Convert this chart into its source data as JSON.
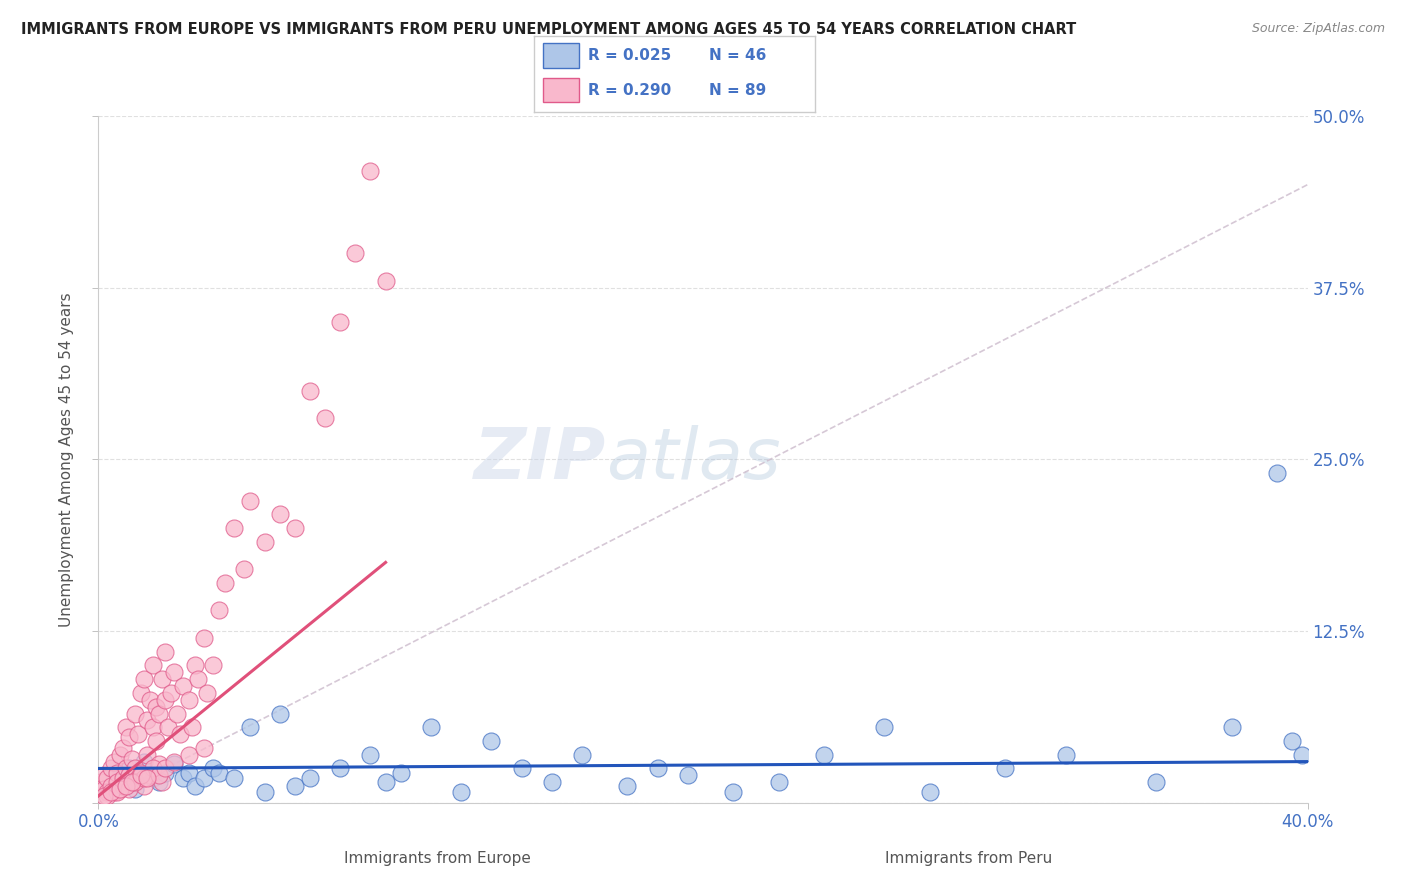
{
  "title": "IMMIGRANTS FROM EUROPE VS IMMIGRANTS FROM PERU UNEMPLOYMENT AMONG AGES 45 TO 54 YEARS CORRELATION CHART",
  "source": "Source: ZipAtlas.com",
  "ylabel": "Unemployment Among Ages 45 to 54 years",
  "xlabel_europe": "Immigrants from Europe",
  "xlabel_peru": "Immigrants from Peru",
  "xlim": [
    0.0,
    0.4
  ],
  "ylim": [
    0.0,
    0.5
  ],
  "yticks": [
    0.0,
    0.125,
    0.25,
    0.375,
    0.5
  ],
  "ytick_labels_right": [
    "",
    "12.5%",
    "25.0%",
    "37.5%",
    "50.0%"
  ],
  "xtick_positions": [
    0.0,
    0.4
  ],
  "xtick_labels": [
    "0.0%",
    "40.0%"
  ],
  "europe_fill_color": "#aec6e8",
  "europe_edge_color": "#4472c4",
  "peru_fill_color": "#f9b8cc",
  "peru_edge_color": "#e05a8a",
  "europe_line_color": "#2255bb",
  "peru_line_color": "#e0507a",
  "dashed_line_color": "#ccbbcc",
  "europe_R": 0.025,
  "europe_N": 46,
  "peru_R": 0.29,
  "peru_N": 89,
  "watermark_zip": "ZIP",
  "watermark_atlas": "atlas",
  "background_color": "#ffffff",
  "grid_color": "#dddddd",
  "title_color": "#222222",
  "legend_text_color": "#4472c4",
  "europe_scatter_x": [
    0.005,
    0.008,
    0.01,
    0.012,
    0.015,
    0.018,
    0.02,
    0.022,
    0.025,
    0.028,
    0.03,
    0.032,
    0.035,
    0.038,
    0.04,
    0.045,
    0.05,
    0.055,
    0.06,
    0.065,
    0.07,
    0.08,
    0.09,
    0.095,
    0.1,
    0.11,
    0.12,
    0.13,
    0.14,
    0.15,
    0.16,
    0.175,
    0.185,
    0.195,
    0.21,
    0.225,
    0.24,
    0.26,
    0.275,
    0.3,
    0.32,
    0.35,
    0.375,
    0.39,
    0.395,
    0.398
  ],
  "europe_scatter_y": [
    0.02,
    0.015,
    0.025,
    0.01,
    0.03,
    0.018,
    0.015,
    0.022,
    0.028,
    0.018,
    0.022,
    0.012,
    0.018,
    0.025,
    0.022,
    0.018,
    0.055,
    0.008,
    0.065,
    0.012,
    0.018,
    0.025,
    0.035,
    0.015,
    0.022,
    0.055,
    0.008,
    0.045,
    0.025,
    0.015,
    0.035,
    0.012,
    0.025,
    0.02,
    0.008,
    0.015,
    0.035,
    0.055,
    0.008,
    0.025,
    0.035,
    0.015,
    0.055,
    0.24,
    0.045,
    0.035
  ],
  "peru_scatter_x": [
    0.001,
    0.002,
    0.002,
    0.003,
    0.003,
    0.004,
    0.004,
    0.005,
    0.005,
    0.006,
    0.006,
    0.007,
    0.007,
    0.008,
    0.008,
    0.009,
    0.009,
    0.01,
    0.01,
    0.011,
    0.011,
    0.012,
    0.012,
    0.013,
    0.013,
    0.014,
    0.014,
    0.015,
    0.015,
    0.016,
    0.016,
    0.017,
    0.017,
    0.018,
    0.018,
    0.019,
    0.019,
    0.02,
    0.02,
    0.021,
    0.021,
    0.022,
    0.022,
    0.023,
    0.024,
    0.025,
    0.026,
    0.027,
    0.028,
    0.03,
    0.031,
    0.032,
    0.033,
    0.035,
    0.036,
    0.038,
    0.04,
    0.042,
    0.045,
    0.048,
    0.05,
    0.055,
    0.06,
    0.065,
    0.07,
    0.075,
    0.08,
    0.085,
    0.09,
    0.095,
    0.003,
    0.006,
    0.008,
    0.01,
    0.012,
    0.015,
    0.018,
    0.02,
    0.002,
    0.004,
    0.007,
    0.009,
    0.011,
    0.014,
    0.016,
    0.022,
    0.025,
    0.03,
    0.035
  ],
  "peru_scatter_y": [
    0.015,
    0.02,
    0.01,
    0.018,
    0.008,
    0.025,
    0.012,
    0.03,
    0.008,
    0.022,
    0.015,
    0.035,
    0.01,
    0.04,
    0.018,
    0.055,
    0.025,
    0.048,
    0.02,
    0.032,
    0.015,
    0.065,
    0.025,
    0.05,
    0.018,
    0.08,
    0.022,
    0.09,
    0.012,
    0.06,
    0.035,
    0.075,
    0.02,
    0.055,
    0.1,
    0.07,
    0.045,
    0.065,
    0.028,
    0.09,
    0.015,
    0.11,
    0.075,
    0.055,
    0.08,
    0.095,
    0.065,
    0.05,
    0.085,
    0.075,
    0.055,
    0.1,
    0.09,
    0.12,
    0.08,
    0.1,
    0.14,
    0.16,
    0.2,
    0.17,
    0.22,
    0.19,
    0.21,
    0.2,
    0.3,
    0.28,
    0.35,
    0.4,
    0.46,
    0.38,
    0.005,
    0.008,
    0.012,
    0.01,
    0.015,
    0.018,
    0.025,
    0.02,
    0.005,
    0.008,
    0.01,
    0.012,
    0.015,
    0.02,
    0.018,
    0.025,
    0.03,
    0.035,
    0.04
  ],
  "europe_trend_x": [
    0.0,
    0.4
  ],
  "europe_trend_y": [
    0.025,
    0.03
  ],
  "peru_trend_x_start": 0.0,
  "peru_trend_x_end": 0.095,
  "peru_trend_y_start": 0.005,
  "peru_trend_y_end": 0.175,
  "dashed_line_x": [
    0.0,
    0.4
  ],
  "dashed_line_y": [
    0.0,
    0.45
  ]
}
